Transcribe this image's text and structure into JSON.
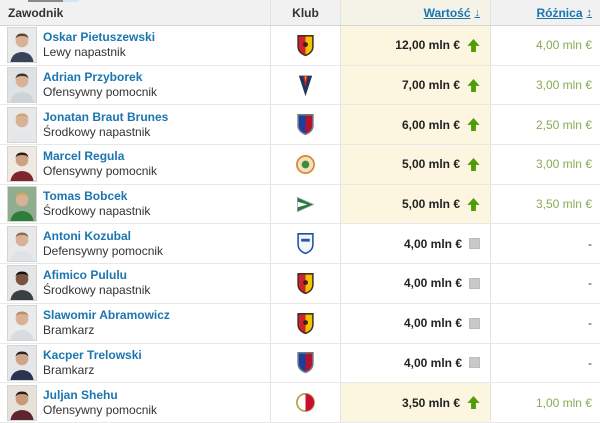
{
  "header": {
    "player_col": "Zawodnik",
    "club_col": "Klub",
    "value_col": "Wartość",
    "value_sort_icon": "↓",
    "diff_col": "Różnica",
    "diff_sort_icon": "↕"
  },
  "colors": {
    "link_blue": "#1b75af",
    "diff_green": "#89aa55",
    "arrow_green": "#4e9c06",
    "value_highlight_bg": "#fcf6e1",
    "header_bg": "#f1f1f1",
    "header_value_bg": "#f5f2e8",
    "row_border": "#e8e8e8",
    "column_border": "#e3e3e3",
    "neutral_square": "#c9c9c9"
  },
  "rows": [
    {
      "name": "Oskar Pietuszewski",
      "position": "Lewy napastnik",
      "club_icon": "jagiellonia-badge",
      "badge": {
        "type": "shield",
        "left": "#d2202f",
        "right": "#f2c500",
        "border": "#46301c",
        "inner": "#3a2416",
        "inner_shape": "dot"
      },
      "photo": {
        "bg": "#e8eaec",
        "skin": "#d9b197",
        "hair": "#5a4632",
        "shirt": "#39445a"
      },
      "value": "12,00 mln €",
      "trend": "up",
      "diff": "4,00 mln €"
    },
    {
      "name": "Adrian Przyborek",
      "position": "Ofensywny pomocnik",
      "club_icon": "pogon-szczecin-badge",
      "badge": {
        "type": "pennant-down",
        "main": "#17336e",
        "stripe": "#cf1f2e",
        "accent": "#f2c500",
        "border": "#3a3a3a"
      },
      "photo": {
        "bg": "#dfe2e4",
        "skin": "#d9b197",
        "hair": "#3c332a",
        "shirt": "#cdd3d8"
      },
      "value": "7,00 mln €",
      "trend": "up",
      "diff": "3,00 mln €"
    },
    {
      "name": "Jonatan Braut Brunes",
      "position": "Środkowy napastnik",
      "club_icon": "rakow-badge",
      "badge": {
        "type": "shield",
        "left": "#1c3f9d",
        "right": "#b51230",
        "border": "#6e7b85",
        "inner": "",
        "inner_shape": ""
      },
      "photo": {
        "bg": "#e6e8ea",
        "skin": "#d9b197",
        "hair": "#c9a86a",
        "shirt": "#e4e6e8"
      },
      "value": "6,00 mln €",
      "trend": "up",
      "diff": "2,50 mln €"
    },
    {
      "name": "Marcel Regula",
      "position": "Ofensywny pomocnik",
      "club_icon": "termalica-badge",
      "badge": {
        "type": "circle",
        "fill": "#efe2c0",
        "ring": "#d8872f",
        "center": "#45893c",
        "style": "dot"
      },
      "photo": {
        "bg": "#efe9e2",
        "skin": "#caa183",
        "hair": "#262019",
        "shirt": "#7e262b"
      },
      "value": "5,00 mln €",
      "trend": "up",
      "diff": "3,00 mln €"
    },
    {
      "name": "Tomas Bobcek",
      "position": "Środkowy napastnik",
      "club_icon": "lechia-gdansk-badge",
      "badge": {
        "type": "pennant-right",
        "main": "#267a36",
        "stripe": "#ffffff",
        "border": "#9aa5ad"
      },
      "photo": {
        "bg": "#8fae90",
        "skin": "#d9b197",
        "hair": "#c9a86a",
        "shirt": "#2e7d3b"
      },
      "value": "5,00 mln €",
      "trend": "up",
      "diff": "3,50 mln €"
    },
    {
      "name": "Antoni Kozubal",
      "position": "Defensywny pomocnik",
      "club_icon": "lech-poznan-badge",
      "badge": {
        "type": "shield",
        "left": "#f2f5f9",
        "right": "#f2f5f9",
        "border": "#1d4fa1",
        "inner": "#2456a8",
        "inner_shape": "band"
      },
      "photo": {
        "bg": "#e7e9eb",
        "skin": "#d9b197",
        "hair": "#8a6f4e",
        "shirt": "#dfe3e7"
      },
      "value": "4,00 mln €",
      "trend": "none",
      "diff": "-"
    },
    {
      "name": "Afimico Pululu",
      "position": "Środkowy napastnik",
      "club_icon": "jagiellonia-badge",
      "badge": {
        "type": "shield",
        "left": "#d2202f",
        "right": "#f2c500",
        "border": "#46301c",
        "inner": "#3a2416",
        "inner_shape": "dot"
      },
      "photo": {
        "bg": "#e3e5e7",
        "skin": "#7a5440",
        "hair": "#15120f",
        "shirt": "#3a3f44"
      },
      "value": "4,00 mln €",
      "trend": "none",
      "diff": "-"
    },
    {
      "name": "Slawomir Abramowicz",
      "position": "Bramkarz",
      "club_icon": "jagiellonia-badge",
      "badge": {
        "type": "shield",
        "left": "#d2202f",
        "right": "#f2c500",
        "border": "#46301c",
        "inner": "#3a2416",
        "inner_shape": "dot"
      },
      "photo": {
        "bg": "#e9ebed",
        "skin": "#d9b197",
        "hair": "#b98f5e",
        "shirt": "#d8dce0"
      },
      "value": "4,00 mln €",
      "trend": "none",
      "diff": "-"
    },
    {
      "name": "Kacper Trelowski",
      "position": "Bramkarz",
      "club_icon": "rakow-badge",
      "badge": {
        "type": "shield",
        "left": "#1c3f9d",
        "right": "#b51230",
        "border": "#6e7b85",
        "inner": "",
        "inner_shape": ""
      },
      "photo": {
        "bg": "#e4e6e8",
        "skin": "#cfa488",
        "hair": "#2b2522",
        "shirt": "#2a3350"
      },
      "value": "4,00 mln €",
      "trend": "none",
      "diff": "-"
    },
    {
      "name": "Juljan Shehu",
      "position": "Ofensywny pomocnik",
      "club_icon": "widzew-lodz-badge",
      "badge": {
        "type": "circle",
        "fill": "#ffffff",
        "ring": "#bd9c4d",
        "center": "#c8102e",
        "style": "half"
      },
      "photo": {
        "bg": "#e6e2da",
        "skin": "#c89a78",
        "hair": "#221e1c",
        "shirt": "#5c2630"
      },
      "value": "3,50 mln €",
      "trend": "up",
      "diff": "1,00 mln €"
    }
  ]
}
